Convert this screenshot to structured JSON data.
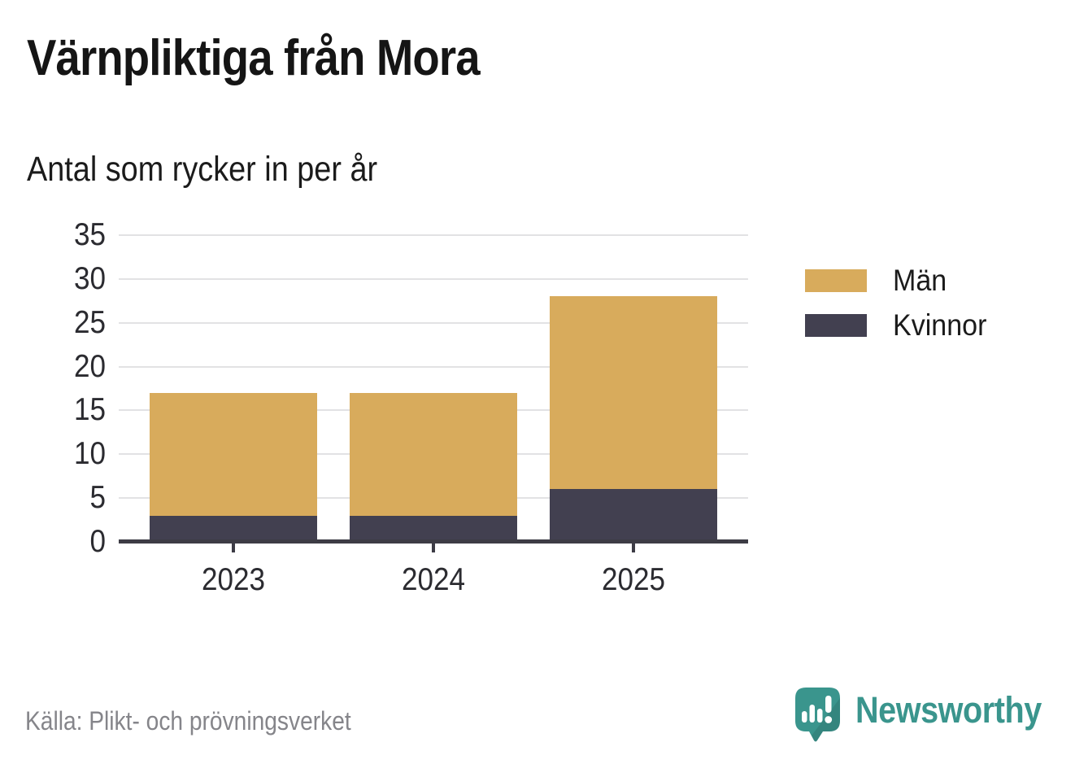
{
  "header": {
    "title": "Värnpliktiga från Mora",
    "subtitle": "Antal som rycker in per år"
  },
  "chart_data": {
    "type": "bar",
    "stacked": true,
    "categories": [
      "2023",
      "2024",
      "2025"
    ],
    "series": [
      {
        "name": "Män",
        "color": "#d8ab5c",
        "values": [
          14,
          14,
          22
        ]
      },
      {
        "name": "Kvinnor",
        "color": "#424050",
        "values": [
          3,
          3,
          6
        ]
      }
    ],
    "stack_bottom_first": [
      "Kvinnor",
      "Män"
    ],
    "totals": [
      17,
      17,
      28
    ],
    "title": "Värnpliktiga från Mora",
    "subtitle": "Antal som rycker in per år",
    "xlabel": "",
    "ylabel": "",
    "ylim": [
      0,
      35
    ],
    "yticks": [
      0,
      5,
      10,
      15,
      20,
      25,
      30,
      35
    ],
    "grid": "horizontal",
    "legend_position": "right"
  },
  "footer": {
    "source": "Källa: Plikt- och prövningsverket",
    "brand": "Newsworthy"
  },
  "colors": {
    "grid": "#e2e2e4",
    "axis": "#3d3c45",
    "tick_text": "#2b2b30",
    "source_text": "#85858a",
    "brand_teal": "#3a958d"
  }
}
